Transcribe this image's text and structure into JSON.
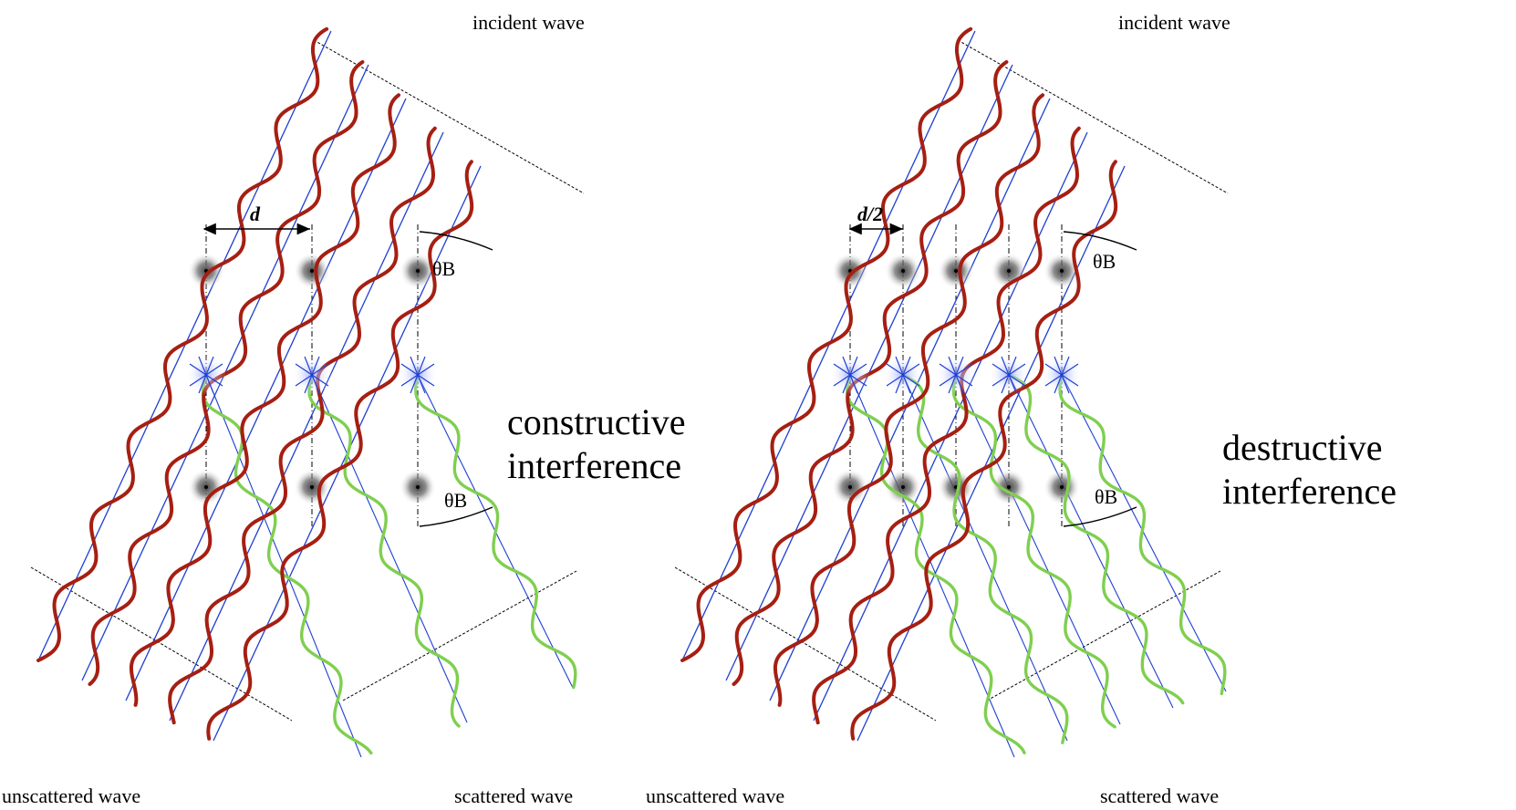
{
  "colors": {
    "incident_wave": "#a51f12",
    "scattered_wave": "#7fcf4f",
    "wave_axis": "#1f3fd0",
    "atom_center": "#000000",
    "guide_line": "#000000"
  },
  "panels": [
    {
      "id": "left",
      "labels": {
        "incident": "incident wave",
        "unscattered": "unscattered wave",
        "scattered": "scattered wave",
        "spacing": "d",
        "angle_top": "θB",
        "angle_bottom": "θB",
        "interference_line1": "constructive",
        "interference_line2": "interference"
      },
      "atom_columns": 3,
      "spacing_fraction_of_d": 1
    },
    {
      "id": "right",
      "labels": {
        "incident": "incident wave",
        "unscattered": "unscattered wave",
        "scattered": "scattered wave",
        "spacing": "d/2",
        "angle_top": "θB",
        "angle_bottom": "θB",
        "interference_line1": "destructive",
        "interference_line2": "interference"
      },
      "atom_columns": 5,
      "spacing_fraction_of_d": 0.5
    }
  ]
}
